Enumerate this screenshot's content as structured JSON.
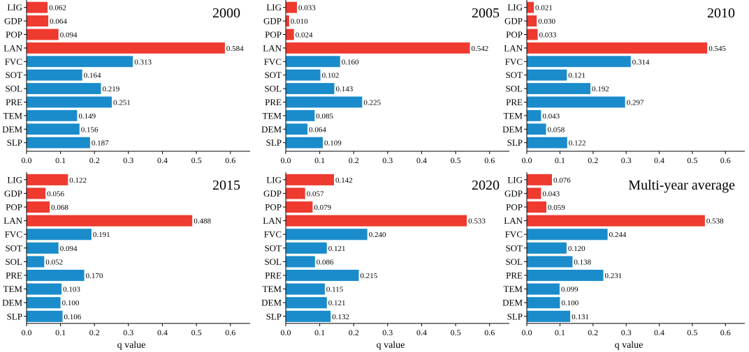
{
  "colors": {
    "highlight": "#ee3a2f",
    "normal": "#1a8ccb"
  },
  "chart_data": [
    {
      "type": "bar",
      "orientation": "horizontal",
      "title": "2000",
      "xlabel": "",
      "xlim": [
        0,
        0.65
      ],
      "xticks": [
        "0.0",
        "0.1",
        "0.2",
        "0.3",
        "0.4",
        "0.5",
        "0.6"
      ],
      "categories": [
        "LIG",
        "GDP",
        "POP",
        "LAN",
        "FVC",
        "SOT",
        "SOL",
        "PRE",
        "TEM",
        "DEM",
        "SLP"
      ],
      "values": [
        0.062,
        0.064,
        0.094,
        0.584,
        0.313,
        0.164,
        0.219,
        0.251,
        0.149,
        0.156,
        0.187
      ],
      "labels": [
        "0.062",
        "0.064",
        "0.094",
        "0.584",
        "0.313",
        "0.164",
        "0.219",
        "0.251",
        "0.149",
        "0.156",
        "0.187"
      ],
      "highlighted": [
        "LIG",
        "GDP",
        "POP",
        "LAN"
      ]
    },
    {
      "type": "bar",
      "orientation": "horizontal",
      "title": "2005",
      "xlabel": "",
      "xlim": [
        0,
        0.65
      ],
      "xticks": [
        "0.0",
        "0.1",
        "0.2",
        "0.3",
        "0.4",
        "0.5",
        "0.6"
      ],
      "categories": [
        "LIG",
        "GDP",
        "POP",
        "LAN",
        "FVC",
        "SOT",
        "SOL",
        "PRE",
        "TEM",
        "DEM",
        "SLP"
      ],
      "values": [
        0.033,
        0.01,
        0.024,
        0.542,
        0.16,
        0.102,
        0.143,
        0.225,
        0.085,
        0.064,
        0.109
      ],
      "labels": [
        "0.033",
        "0.010",
        "0.024",
        "0.542",
        "0.160",
        "0.102",
        "0.143",
        "0.225",
        "0.085",
        "0.064",
        "0.109"
      ],
      "highlighted": [
        "LIG",
        "GDP",
        "POP",
        "LAN"
      ]
    },
    {
      "type": "bar",
      "orientation": "horizontal",
      "title": "2010",
      "xlabel": "",
      "xlim": [
        0,
        0.65
      ],
      "xticks": [
        "0.0",
        "0.1",
        "0.2",
        "0.3",
        "0.4",
        "0.5",
        "0.6"
      ],
      "categories": [
        "LIG",
        "GDP",
        "POP",
        "LAN",
        "FVC",
        "SOT",
        "SOL",
        "PRE",
        "TEM",
        "DEM",
        "SLP"
      ],
      "values": [
        0.021,
        0.03,
        0.033,
        0.545,
        0.314,
        0.121,
        0.192,
        0.297,
        0.043,
        0.058,
        0.122
      ],
      "labels": [
        "0.021",
        "0.030",
        "0.033",
        "0.545",
        "0.314",
        "0.121",
        "0.192",
        "0.297",
        "0.043",
        "0.058",
        "0.122"
      ],
      "highlighted": [
        "LIG",
        "GDP",
        "POP",
        "LAN"
      ]
    },
    {
      "type": "bar",
      "orientation": "horizontal",
      "title": "2015",
      "xlabel": "q value",
      "xlim": [
        0,
        0.65
      ],
      "xticks": [
        "0.0",
        "0.1",
        "0.2",
        "0.3",
        "0.4",
        "0.5",
        "0.6"
      ],
      "categories": [
        "LIG",
        "GDP",
        "POP",
        "LAN",
        "FVC",
        "SOT",
        "SOL",
        "PRE",
        "TEM",
        "DEM",
        "SLP"
      ],
      "values": [
        0.122,
        0.056,
        0.068,
        0.488,
        0.191,
        0.094,
        0.052,
        0.17,
        0.103,
        0.1,
        0.106
      ],
      "labels": [
        "0.122",
        "0.056",
        "0.068",
        "0.488",
        "0.191",
        "0.094",
        "0.052",
        "0.170",
        "0.103",
        "0.100",
        "0.106"
      ],
      "highlighted": [
        "LIG",
        "GDP",
        "POP",
        "LAN"
      ]
    },
    {
      "type": "bar",
      "orientation": "horizontal",
      "title": "2020",
      "xlabel": "q value",
      "xlim": [
        0,
        0.65
      ],
      "xticks": [
        "0.0",
        "0.1",
        "0.2",
        "0.3",
        "0.4",
        "0.5",
        "0.6"
      ],
      "categories": [
        "LIG",
        "GDP",
        "POP",
        "LAN",
        "FVC",
        "SOT",
        "SOL",
        "PRE",
        "TEM",
        "DEM",
        "SLP"
      ],
      "values": [
        0.142,
        0.057,
        0.079,
        0.533,
        0.24,
        0.121,
        0.086,
        0.215,
        0.115,
        0.121,
        0.132
      ],
      "labels": [
        "0.142",
        "0.057",
        "0.079",
        "0.533",
        "0.240",
        "0.121",
        "0.086",
        "0.215",
        "0.115",
        "0.121",
        "0.132"
      ],
      "highlighted": [
        "LIG",
        "GDP",
        "POP",
        "LAN"
      ]
    },
    {
      "type": "bar",
      "orientation": "horizontal",
      "title": "Multi-year average",
      "xlabel": "q value",
      "xlim": [
        0,
        0.65
      ],
      "xticks": [
        "0.0",
        "0.1",
        "0.2",
        "0.3",
        "0.4",
        "0.5",
        "0.6"
      ],
      "categories": [
        "LIG",
        "GDP",
        "POP",
        "LAN",
        "FVC",
        "SOT",
        "SOL",
        "PRE",
        "TEM",
        "DEM",
        "SLP"
      ],
      "values": [
        0.076,
        0.043,
        0.059,
        0.538,
        0.244,
        0.12,
        0.138,
        0.231,
        0.099,
        0.1,
        0.131
      ],
      "labels": [
        "0.076",
        "0.043",
        "0.059",
        "0.538",
        "0.244",
        "0.120",
        "0.138",
        "0.231",
        "0.099",
        "0.100",
        "0.131"
      ],
      "highlighted": [
        "LIG",
        "GDP",
        "POP",
        "LAN"
      ]
    }
  ]
}
